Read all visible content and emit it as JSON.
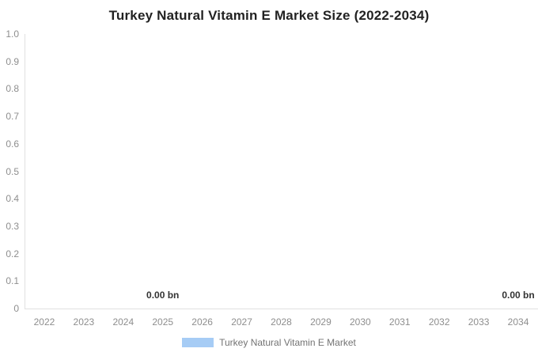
{
  "chart": {
    "title": "Turkey Natural Vitamin E Market Size (2022-2034)"
  },
  "chart_data": {
    "type": "bar",
    "title": "Turkey Natural Vitamin E Market Size (2022-2034)",
    "categories": [
      "2022",
      "2023",
      "2024",
      "2025",
      "2026",
      "2027",
      "2028",
      "2029",
      "2030",
      "2031",
      "2032",
      "2033",
      "2034"
    ],
    "series": [
      {
        "name": "Turkey Natural Vitamin E Market",
        "values": [
          0,
          0,
          0,
          0,
          0,
          0,
          0,
          0,
          0,
          0,
          0,
          0,
          0
        ],
        "color": "#a6ccf5"
      }
    ],
    "xlabel": "",
    "ylabel": "",
    "ylim": [
      0,
      1
    ],
    "y_ticks": [
      {
        "value": 1.0,
        "label": "1.0"
      },
      {
        "value": 0.9,
        "label": "0.9"
      },
      {
        "value": 0.8,
        "label": "0.8"
      },
      {
        "value": 0.7,
        "label": "0.7"
      },
      {
        "value": 0.6,
        "label": "0.6"
      },
      {
        "value": 0.5,
        "label": "0.5"
      },
      {
        "value": 0.4,
        "label": "0.4"
      },
      {
        "value": 0.3,
        "label": "0.3"
      },
      {
        "value": 0.2,
        "label": "0.2"
      },
      {
        "value": 0.1,
        "label": "0.1"
      },
      {
        "value": 0,
        "label": "0"
      }
    ],
    "grid": false,
    "legend_position": "bottom",
    "data_labels": [
      {
        "category": "2025",
        "text": "0.00 bn"
      },
      {
        "category": "2034",
        "text": "0.00 bn"
      }
    ]
  },
  "legend": {
    "items": [
      {
        "label": "Turkey Natural Vitamin E Market",
        "swatch_color": "#a6ccf5"
      }
    ]
  },
  "colors": {
    "background": "#ffffff",
    "title": "#222222",
    "axis_line": "#e0e0e0",
    "axis_label": "#8e8e8e",
    "data_label": "#333333",
    "legend_label": "#737373"
  }
}
